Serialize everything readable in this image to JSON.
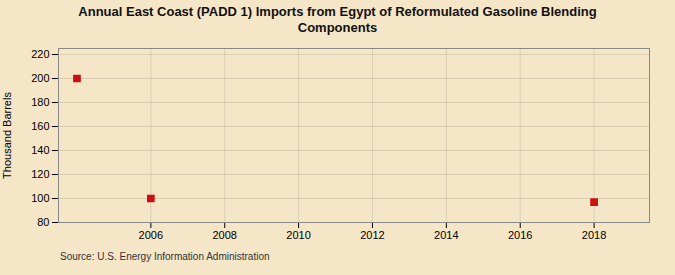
{
  "chart_data": {
    "type": "scatter",
    "title": "Annual East Coast (PADD 1) Imports from Egypt of Reformulated Gasoline Blending\nComponents",
    "ylabel": "Thousand Barrels",
    "annotations": [
      "Source: U.S. Energy Information Administration"
    ],
    "x": [
      2004,
      2006,
      2018
    ],
    "values": [
      200,
      100,
      97
    ],
    "color": "#cc1111",
    "marker": "square",
    "xlim": [
      2003.5,
      2019.5
    ],
    "xticks": [
      2006,
      2008,
      2010,
      2012,
      2014,
      2016,
      2018
    ],
    "ylim": [
      80,
      225
    ],
    "yticks": [
      80,
      100,
      120,
      140,
      160,
      180,
      200,
      220
    ],
    "grid": true
  }
}
